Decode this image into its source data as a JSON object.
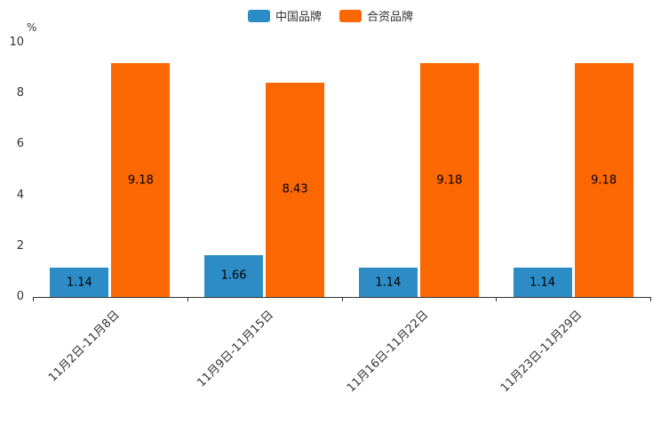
{
  "legend": [
    {
      "label": "中国品牌",
      "color": "#2D8CC5"
    },
    {
      "label": "合资品牌",
      "color": "#FB6702"
    }
  ],
  "chart_data": {
    "type": "bar",
    "categories": [
      "11月2日-11月8日",
      "11月9日-11月15日",
      "11月16日-11月22日",
      "11月23日-11月29日"
    ],
    "series": [
      {
        "name": "中国品牌",
        "color": "#2D8CC5",
        "values": [
          1.14,
          1.66,
          1.14,
          1.14
        ]
      },
      {
        "name": "合资品牌",
        "color": "#FB6702",
        "values": [
          9.18,
          8.43,
          9.18,
          9.18
        ]
      }
    ],
    "title": "",
    "xlabel": "",
    "ylabel": "%",
    "ylim": [
      0,
      10
    ],
    "yticks": [
      0,
      2,
      4,
      6,
      8,
      10
    ],
    "grid": false,
    "legend_position": "top",
    "value_labels": "inside"
  }
}
